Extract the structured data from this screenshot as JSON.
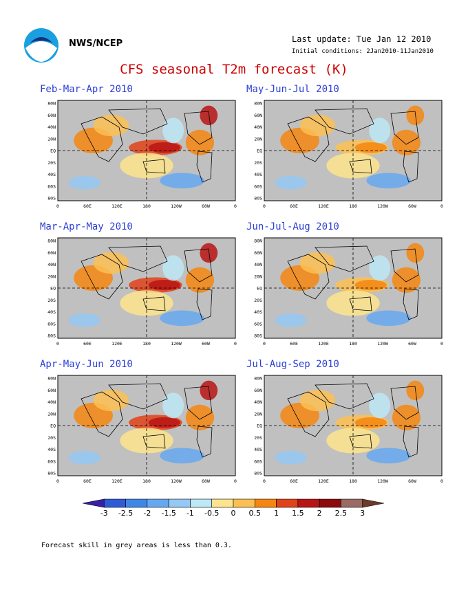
{
  "header": {
    "org": "NWS/NCEP",
    "last_update": "Last update: Tue Jan 12 2010",
    "initial_conditions": "Initial conditions: 2Jan2010-11Jan2010",
    "logo_text": "NOAA"
  },
  "title": "CFS seasonal T2m forecast (K)",
  "panels": [
    {
      "title": "Feb-Mar-Apr 2010"
    },
    {
      "title": "May-Jun-Jul 2010"
    },
    {
      "title": "Mar-Apr-May 2010"
    },
    {
      "title": "Jun-Jul-Aug 2010"
    },
    {
      "title": "Apr-May-Jun 2010"
    },
    {
      "title": "Jul-Aug-Sep 2010"
    }
  ],
  "axes": {
    "lat_labels": [
      "80N",
      "60N",
      "40N",
      "20N",
      "EQ",
      "20S",
      "40S",
      "60S",
      "80S"
    ],
    "lon_labels": [
      "0",
      "60E",
      "120E",
      "180",
      "120W",
      "60W",
      "0"
    ]
  },
  "colorbar": {
    "labels": [
      "-3",
      "-2.5",
      "-2",
      "-1.5",
      "-1",
      "-0.5",
      "0",
      "0.5",
      "1",
      "1.5",
      "2",
      "2.5",
      "3"
    ],
    "colors": [
      "#3a1fa8",
      "#2f5cd6",
      "#3f87e6",
      "#66a8f0",
      "#94c8f5",
      "#bde8f5",
      "#fde48c",
      "#fbbf52",
      "#f5860f",
      "#e0421a",
      "#b81414",
      "#8c0a0a",
      "#9a6a64",
      "#6b3a28"
    ]
  },
  "palette": {
    "grey": "#c0c0c0",
    "ocean_neutral": "#c0c0c0",
    "title_red": "#cc0000",
    "panel_title_blue": "#2a3fd6"
  },
  "footnote": "Forecast skill in grey areas is less than 0.3."
}
